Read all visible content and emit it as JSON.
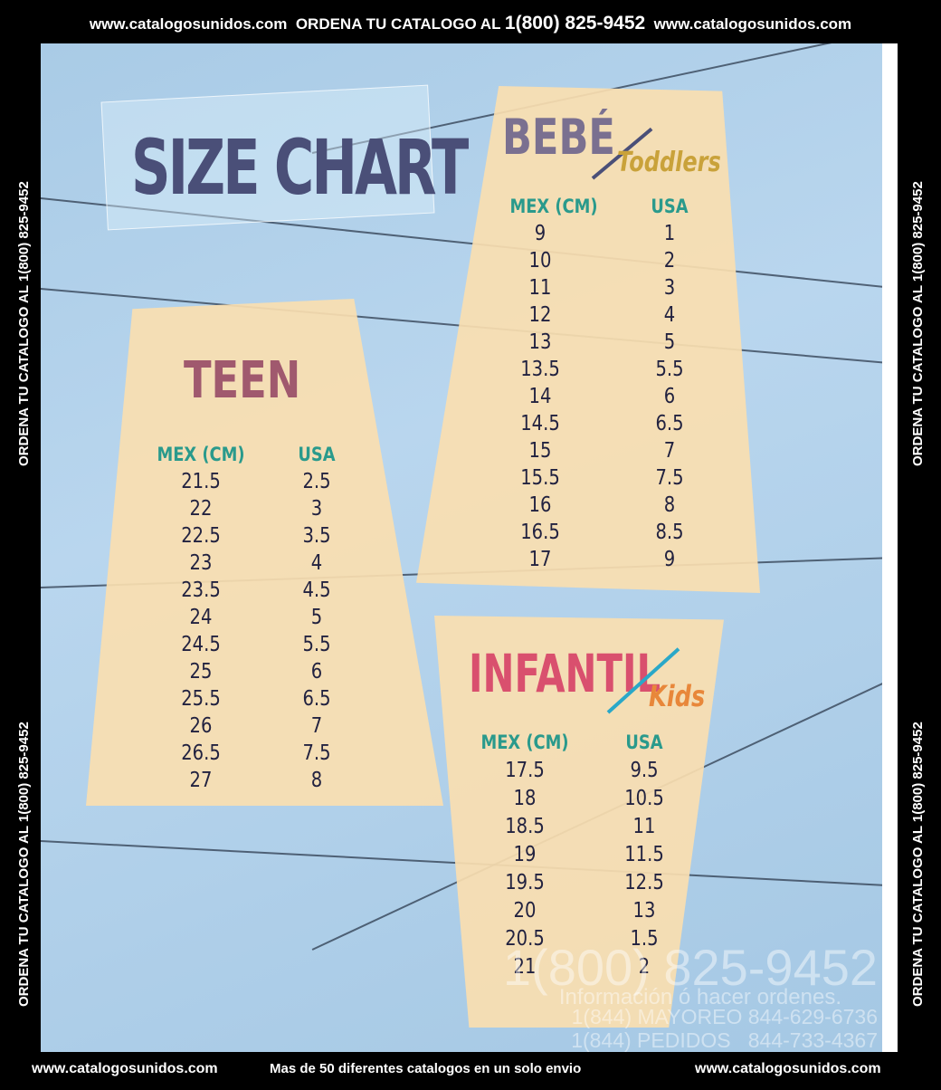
{
  "header": {
    "url_left": "www.catalogosunidos.com",
    "order_text": "ORDENA TU CATALOGO AL",
    "phone": "1(800) 825-9452",
    "url_right": "www.catalogosunidos.com"
  },
  "side_text": "ORDENA TU CATALOGO AL 1(800) 825-9452",
  "title": "SIZE CHART",
  "teen": {
    "title": "TEEN",
    "col_mex": "MEX (CM)",
    "col_usa": "USA",
    "mex": [
      "21.5",
      "22",
      "22.5",
      "23",
      "23.5",
      "24",
      "24.5",
      "25",
      "25.5",
      "26",
      "26.5",
      "27"
    ],
    "usa": [
      "2.5",
      "3",
      "3.5",
      "4",
      "4.5",
      "5",
      "5.5",
      "6",
      "6.5",
      "7",
      "7.5",
      "8"
    ]
  },
  "bebe": {
    "title": "BEBÉ",
    "subtitle": "Toddlers",
    "col_mex": "MEX (CM)",
    "col_usa": "USA",
    "mex": [
      "9",
      "10",
      "11",
      "12",
      "13",
      "13.5",
      "14",
      "14.5",
      "15",
      "15.5",
      "16",
      "16.5",
      "17"
    ],
    "usa": [
      "1",
      "2",
      "3",
      "4",
      "5",
      "5.5",
      "6",
      "6.5",
      "7",
      "7.5",
      "8",
      "8.5",
      "9"
    ]
  },
  "infantil": {
    "title": "INFANTIL",
    "subtitle": "Kids",
    "col_mex": "MEX (CM)",
    "col_usa": "USA",
    "mex": [
      "17.5",
      "18",
      "18.5",
      "19",
      "19.5",
      "20",
      "20.5",
      "21"
    ],
    "usa": [
      "9.5",
      "10.5",
      "11",
      "11.5",
      "12.5",
      "13",
      "1.5",
      "2"
    ]
  },
  "watermark": {
    "phone": "1(800) 825-9452",
    "info": "Información ó hacer ordenes.",
    "mayoreo": "1(844) MAYOREO 844-629-6736",
    "pedidos": "1(844) PEDIDOS   844-733-4367"
  },
  "footer": {
    "url_left": "www.catalogosunidos.com",
    "tagline": "Mas de 50 diferentes catalogos en un solo envio",
    "url_right": "www.catalogosunidos.com"
  },
  "colors": {
    "title": "#4a4f78",
    "teen": "#a0596e",
    "bebe": "#7a7090",
    "infantil": "#d9506e",
    "header": "#2a9a8c",
    "toddlers": "#c9a23a",
    "kids": "#e8873a"
  }
}
